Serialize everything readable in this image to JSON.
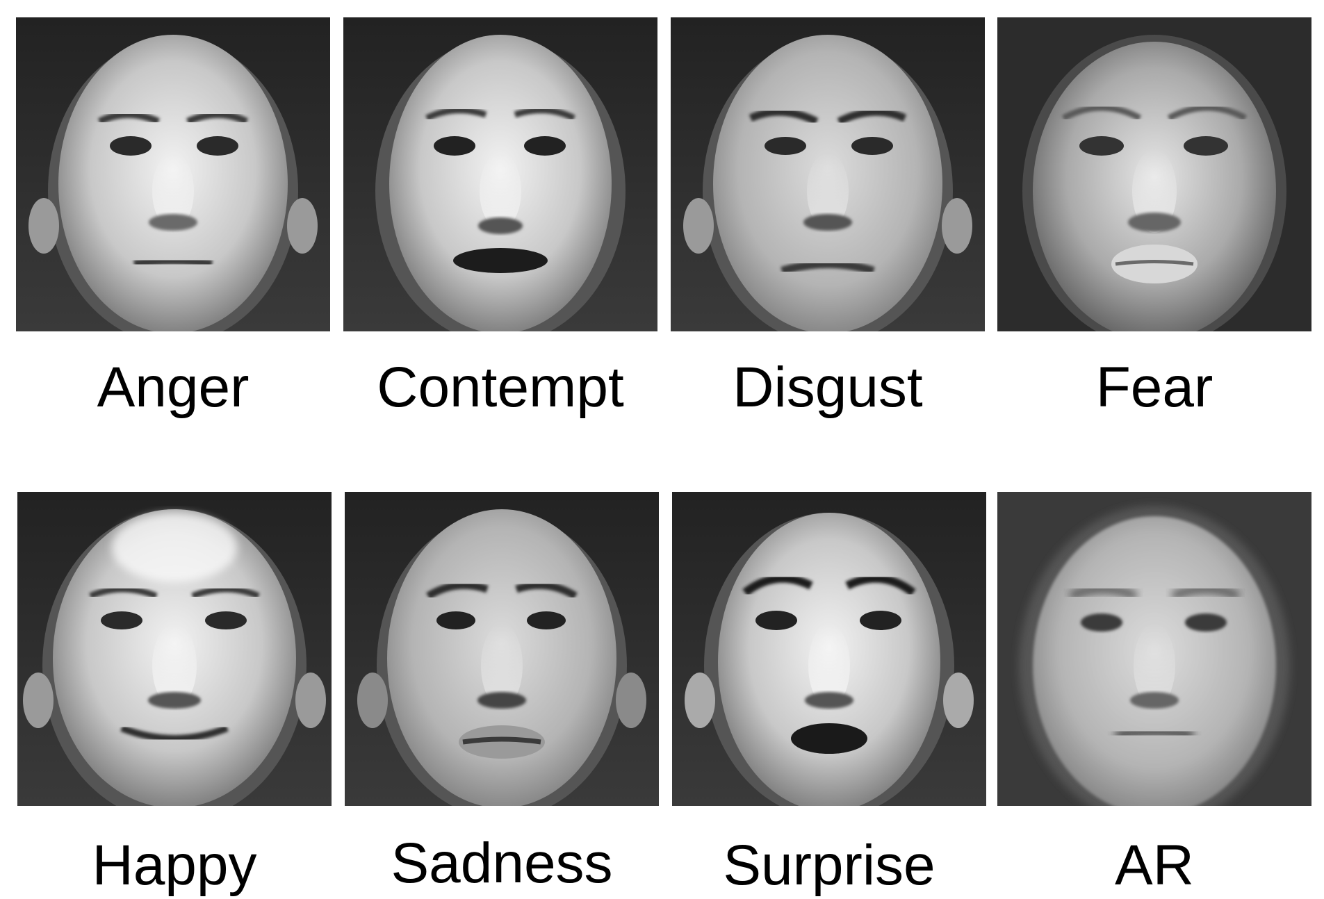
{
  "panels": [
    {
      "label": "Anger"
    },
    {
      "label": "Contempt"
    },
    {
      "label": "Disgust"
    },
    {
      "label": "Fear"
    },
    {
      "label": "Happy"
    },
    {
      "label": "Sadness"
    },
    {
      "label": "Surprise"
    },
    {
      "label": "AR"
    }
  ]
}
